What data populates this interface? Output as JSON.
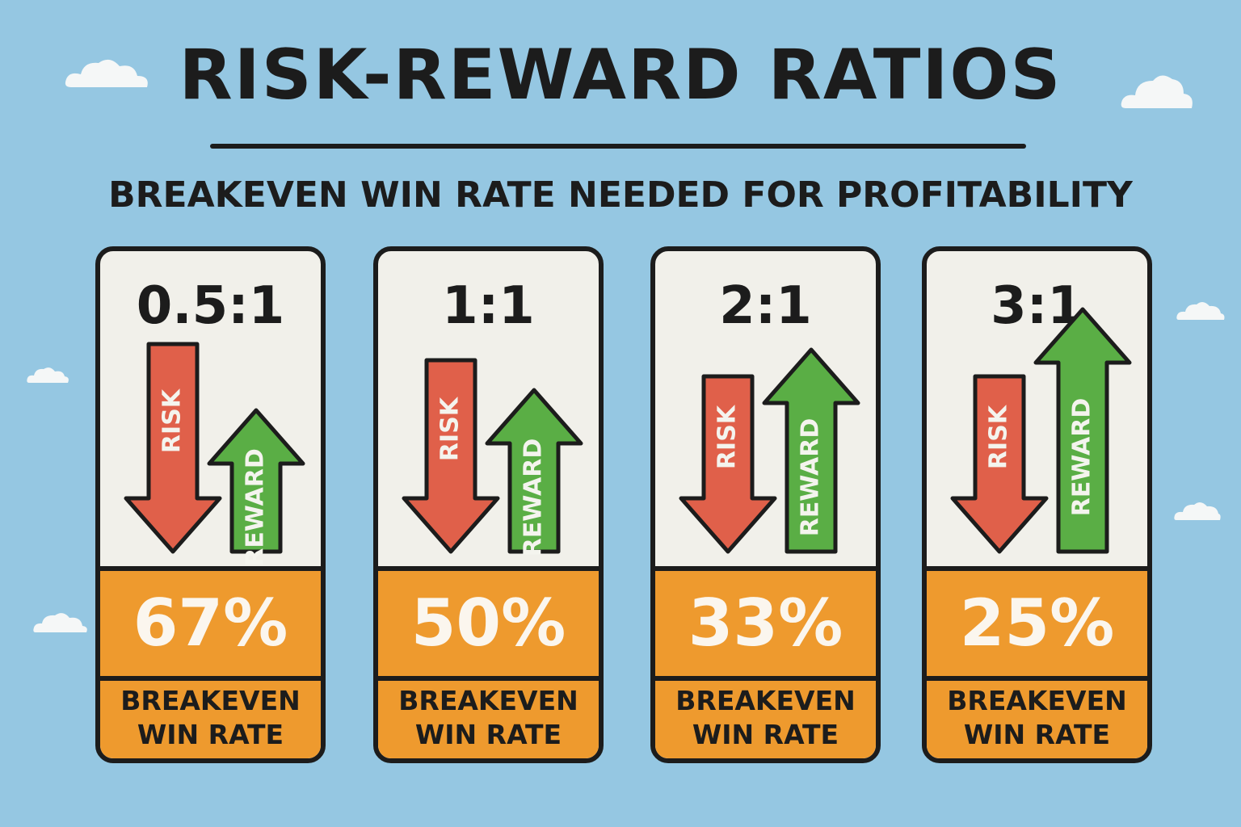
{
  "title": "RISK-REWARD RATIOS",
  "subtitle": "BREAKEVEN WIN RATE NEEDED FOR PROFITABILITY",
  "colors": {
    "background": "#95c7e2",
    "risk": "#e0604a",
    "reward": "#5aae45",
    "panel": "#ee9a2e",
    "outline": "#1c1c1c"
  },
  "cards": [
    {
      "ratio": "0.5:1",
      "risk_label": "RISK",
      "reward_label": "REWARD",
      "risk": 1,
      "reward": 0.5,
      "percent": "67%",
      "caption_line1": "BREAKEVEN",
      "caption_line2": "WIN RATE"
    },
    {
      "ratio": "1:1",
      "risk_label": "RISK",
      "reward_label": "REWARD",
      "risk": 1,
      "reward": 1,
      "percent": "50%",
      "caption_line1": "BREAKEVEN",
      "caption_line2": "WIN RATE"
    },
    {
      "ratio": "2:1",
      "risk_label": "RISK",
      "reward_label": "REWARD",
      "risk": 1,
      "reward": 2,
      "percent": "33%",
      "caption_line1": "BREAKEVEN",
      "caption_line2": "WIN RATE"
    },
    {
      "ratio": "3:1",
      "risk_label": "RISK",
      "reward_label": "REWARD",
      "risk": 1,
      "reward": 3,
      "percent": "25%",
      "caption_line1": "BREAKEVEN",
      "caption_line2": "WIN RATE"
    }
  ]
}
